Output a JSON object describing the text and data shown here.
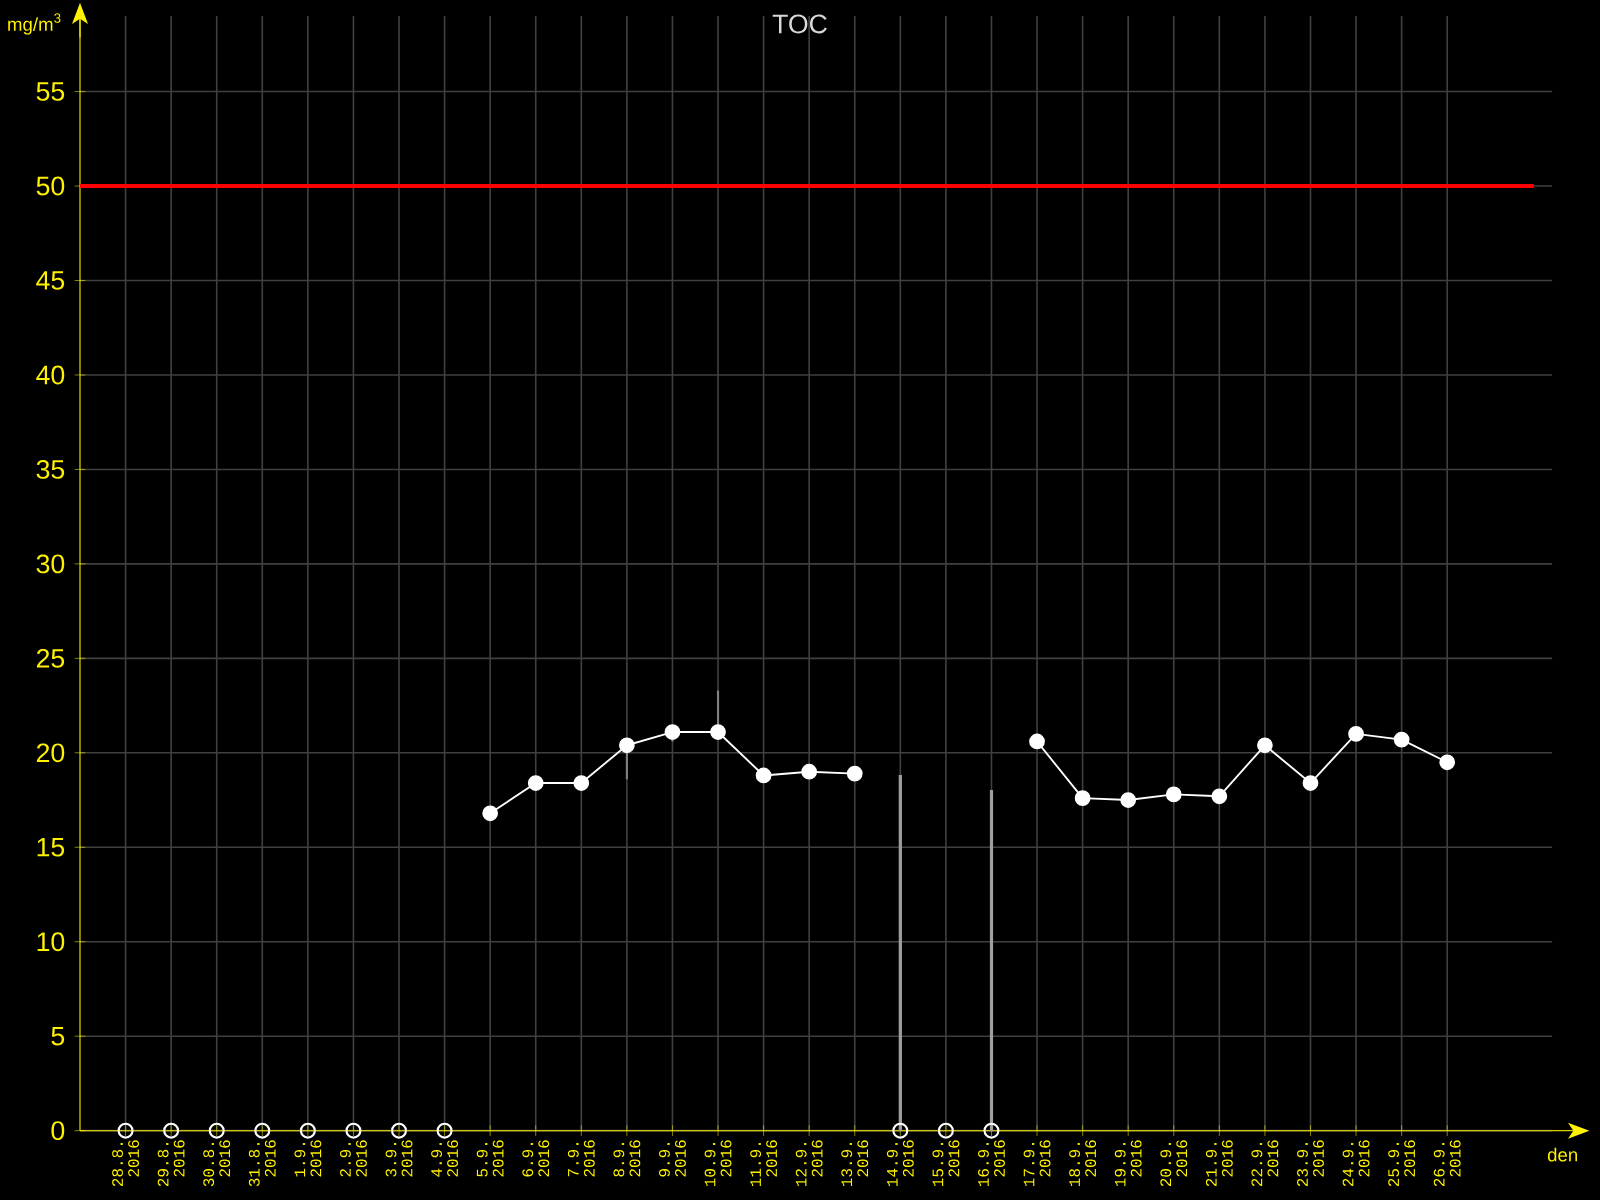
{
  "chart_data": {
    "type": "line",
    "title": "TOC",
    "xlabel": "den",
    "ylabel": "mg/m$^{3}$",
    "categories": [
      "28.8. 2016",
      "29.8. 2016",
      "30.8. 2016",
      "31.8. 2016",
      "1.9. 2016",
      "2.9. 2016",
      "3.9. 2016",
      "4.9. 2016",
      "5.9. 2016",
      "6.9. 2016",
      "7.9. 2016",
      "8.9. 2016",
      "9.9. 2016",
      "10.9. 2016",
      "11.9. 2016",
      "12.9. 2016",
      "13.9. 2016",
      "14.9. 2016",
      "15.9. 2016",
      "16.9. 2016",
      "17.9. 2016",
      "18.9. 2016",
      "19.9. 2016",
      "20.9. 2016",
      "21.9. 2016",
      "22.9. 2016",
      "23.9. 2016",
      "24.9. 2016",
      "25.9. 2016",
      "26.9. 2016"
    ],
    "series": [
      {
        "color": "#ffffff",
        "marker": "circle",
        "values": [
          null,
          null,
          null,
          null,
          null,
          null,
          null,
          null,
          16.8,
          18.4,
          18.4,
          20.4,
          21.1,
          21.1,
          18.8,
          19.0,
          18.9,
          null,
          null,
          null,
          20.6,
          17.6,
          17.5,
          17.8,
          17.7,
          20.4,
          18.4,
          21.0,
          20.7,
          19.5
        ],
        "errors": [
          null,
          null,
          null,
          null,
          null,
          null,
          null,
          null,
          null,
          null,
          null,
          [
            18.6,
            20.4
          ],
          [
            20.6,
            21.1
          ],
          [
            21.1,
            23.3
          ],
          null,
          null,
          null,
          null,
          null,
          null,
          null,
          null,
          null,
          null,
          null,
          null,
          null,
          null,
          null,
          null
        ]
      },
      {
        "type": "bar",
        "color": "#a0a0a0",
        "values": [
          null,
          null,
          null,
          null,
          null,
          null,
          null,
          null,
          null,
          null,
          null,
          null,
          null,
          null,
          null,
          null,
          null,
          18.8,
          null,
          18.0,
          null,
          null,
          null,
          null,
          null,
          null,
          null,
          null,
          null,
          null
        ]
      },
      {
        "type": "scatter",
        "color": "#ffffff",
        "marker": "circle",
        "values": [
          0,
          0,
          0,
          0,
          0,
          0,
          0,
          0,
          null,
          null,
          null,
          null,
          null,
          null,
          null,
          null,
          null,
          0,
          0,
          0,
          null,
          null,
          null,
          null,
          null,
          null,
          null,
          null,
          null,
          null
        ]
      }
    ],
    "ylim": [
      0,
      59
    ],
    "yticks": [
      0,
      5,
      10,
      15,
      20,
      25,
      30,
      35,
      40,
      45,
      50,
      55
    ],
    "grid": true,
    "ref_lines": [
      {
        "axis": "y",
        "value": 50,
        "color": "#ff0000"
      }
    ]
  }
}
